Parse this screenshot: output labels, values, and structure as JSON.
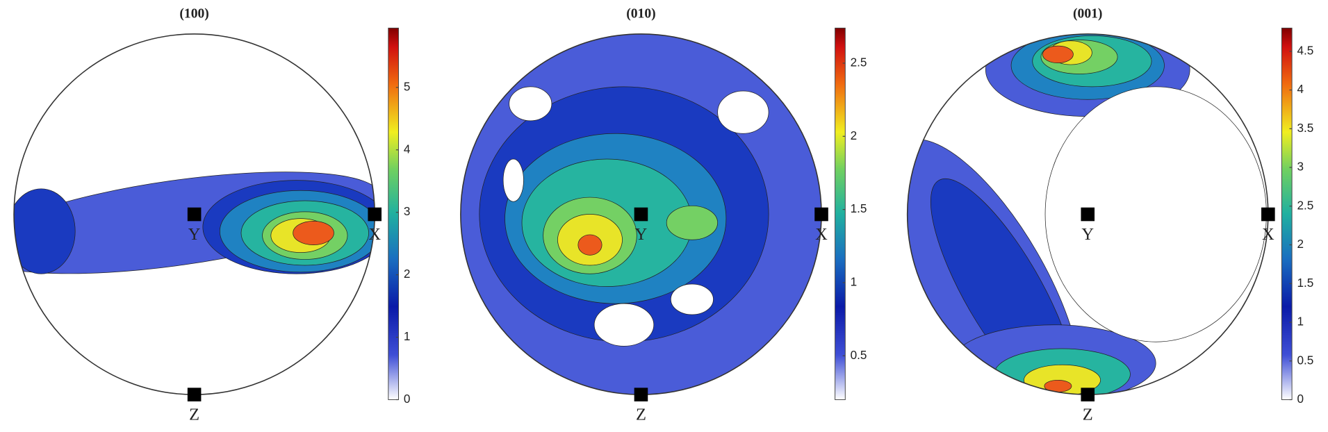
{
  "chart_data": [
    {
      "type": "pole-figure",
      "title": "(100)",
      "x_label": "X",
      "y_label": "Y",
      "z_label": "Z",
      "ylim": [
        0,
        5.95
      ],
      "yticks": [
        0,
        1,
        2,
        3,
        4,
        5
      ]
    },
    {
      "type": "pole-figure",
      "title": "(010)",
      "x_label": "X",
      "y_label": "Y",
      "z_label": "Z",
      "ylim": [
        0.2,
        2.74
      ],
      "yticks": [
        0.5,
        1,
        1.5,
        2,
        2.5
      ]
    },
    {
      "type": "pole-figure",
      "title": "(001)",
      "x_label": "X",
      "y_label": "Y",
      "z_label": "Z",
      "ylim": [
        0,
        4.8
      ],
      "yticks": [
        0,
        0.5,
        1,
        1.5,
        2,
        2.5,
        3,
        3.5,
        4,
        4.5
      ]
    }
  ]
}
